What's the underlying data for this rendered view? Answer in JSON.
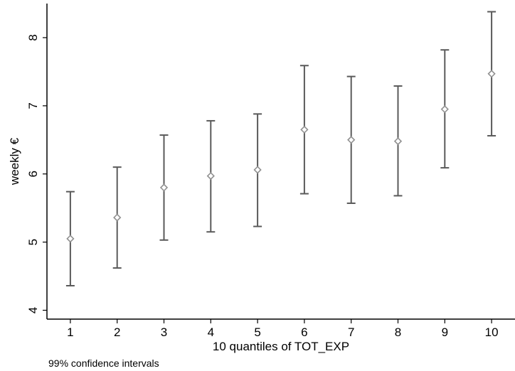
{
  "chart_data": {
    "type": "scatter",
    "title": "",
    "xlabel": "10 quantiles of TOT_EXP",
    "ylabel": "weekly €",
    "note": "99% confidence intervals",
    "x": [
      1,
      2,
      3,
      4,
      5,
      6,
      7,
      8,
      9,
      10
    ],
    "y": [
      5.05,
      5.36,
      5.8,
      5.97,
      6.06,
      6.65,
      6.5,
      6.48,
      6.95,
      7.47
    ],
    "ci_low": [
      4.36,
      4.62,
      5.03,
      5.15,
      5.23,
      5.71,
      5.57,
      5.68,
      6.09,
      6.56
    ],
    "ci_high": [
      5.74,
      6.1,
      6.57,
      6.78,
      6.88,
      7.59,
      7.43,
      7.29,
      7.82,
      8.38
    ],
    "x_ticks": [
      "1",
      "2",
      "3",
      "4",
      "5",
      "6",
      "7",
      "8",
      "9",
      "10"
    ],
    "y_ticks": [
      "4",
      "5",
      "6",
      "7",
      "8"
    ],
    "xlim": [
      0.5,
      10.5
    ],
    "ylim": [
      3.87,
      8.5
    ],
    "grid": false,
    "legend": "none",
    "colors": {
      "marker": "#909090",
      "errorbar": "#5a5a5a",
      "axis": "#000000"
    }
  }
}
